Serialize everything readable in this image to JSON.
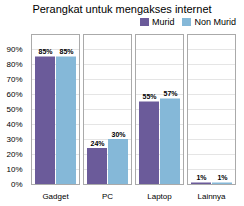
{
  "chart_data": {
    "type": "bar",
    "title": "Perangkat untuk mengakses internet",
    "categories": [
      "Gadget",
      "PC",
      "Laptop",
      "Lainnya"
    ],
    "series": [
      {
        "name": "Murid",
        "color": "#6b5b9a",
        "values": [
          85,
          24,
          55,
          1
        ],
        "value_labels": [
          "85%",
          "24%",
          "55%",
          "1%"
        ]
      },
      {
        "name": "Non Murid",
        "color": "#85b8d8",
        "values": [
          85,
          30,
          57,
          1
        ],
        "value_labels": [
          "85%",
          "30%",
          "57%",
          "1%"
        ]
      }
    ],
    "ylim": [
      0,
      100
    ],
    "yticks": [
      {
        "value": 0,
        "label": "0%"
      },
      {
        "value": 10,
        "label": "10%"
      },
      {
        "value": 20,
        "label": "20%"
      },
      {
        "value": 30,
        "label": "30%"
      },
      {
        "value": 40,
        "label": "40%"
      },
      {
        "value": 50,
        "label": "50%"
      },
      {
        "value": 60,
        "label": "60%"
      },
      {
        "value": 70,
        "label": "70%"
      },
      {
        "value": 80,
        "label": "80%"
      },
      {
        "value": 90,
        "label": "90%"
      }
    ],
    "grid": true,
    "legend": "upper right",
    "data_labels": true
  }
}
